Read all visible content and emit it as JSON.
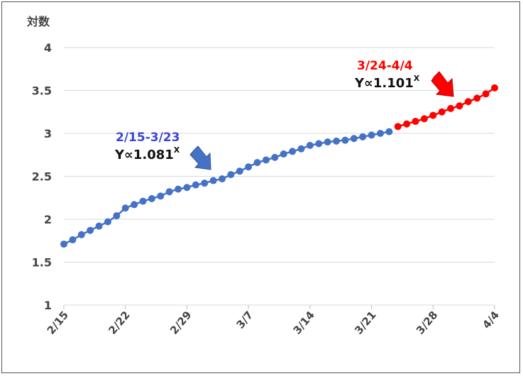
{
  "chart_data": {
    "type": "line",
    "ylabel": "対数",
    "ylim": [
      1,
      4
    ],
    "yticks": [
      "1",
      "1.5",
      "2",
      "2.5",
      "3",
      "3.5",
      "4"
    ],
    "x_start": "2/15",
    "xticks": [
      "2/15",
      "2/22",
      "2/29",
      "3/7",
      "3/14",
      "3/21",
      "3/28",
      "4/4"
    ],
    "grid": true,
    "series": [
      {
        "color": "#4472c4",
        "x": [
          "2/15",
          "2/16",
          "2/17",
          "2/18",
          "2/19",
          "2/20",
          "2/21",
          "2/22",
          "2/23",
          "2/24",
          "2/25",
          "2/26",
          "2/27",
          "2/28",
          "2/29",
          "3/1",
          "3/2",
          "3/3",
          "3/4",
          "3/5",
          "3/6",
          "3/7",
          "3/8",
          "3/9",
          "3/10",
          "3/11",
          "3/12",
          "3/13",
          "3/14",
          "3/15",
          "3/16",
          "3/17",
          "3/18",
          "3/19",
          "3/20",
          "3/21",
          "3/22",
          "3/23"
        ],
        "values": [
          1.71,
          1.76,
          1.82,
          1.87,
          1.92,
          1.97,
          2.04,
          2.13,
          2.17,
          2.21,
          2.24,
          2.27,
          2.32,
          2.35,
          2.37,
          2.4,
          2.42,
          2.45,
          2.47,
          2.52,
          2.56,
          2.61,
          2.66,
          2.69,
          2.72,
          2.76,
          2.79,
          2.82,
          2.86,
          2.88,
          2.9,
          2.91,
          2.92,
          2.94,
          2.96,
          2.98,
          3.0,
          3.02
        ]
      },
      {
        "color": "#ff0000",
        "x": [
          "3/24",
          "3/25",
          "3/26",
          "3/27",
          "3/28",
          "3/29",
          "3/30",
          "3/31",
          "4/1",
          "4/2",
          "4/3",
          "4/4"
        ],
        "values": [
          3.08,
          3.11,
          3.14,
          3.17,
          3.21,
          3.25,
          3.29,
          3.32,
          3.37,
          3.41,
          3.46,
          3.53
        ]
      }
    ],
    "annotations": [
      {
        "range": "2/15-3/23",
        "formula_text": "Y∝1.081",
        "superscript": "X",
        "color": "#3a46d1",
        "arrow_color": "#4472c4"
      },
      {
        "range": "3/24-4/4",
        "formula_text": "Y∝1.101",
        "superscript": "X",
        "color": "#ff0000",
        "arrow_color": "#ff0000"
      }
    ]
  }
}
